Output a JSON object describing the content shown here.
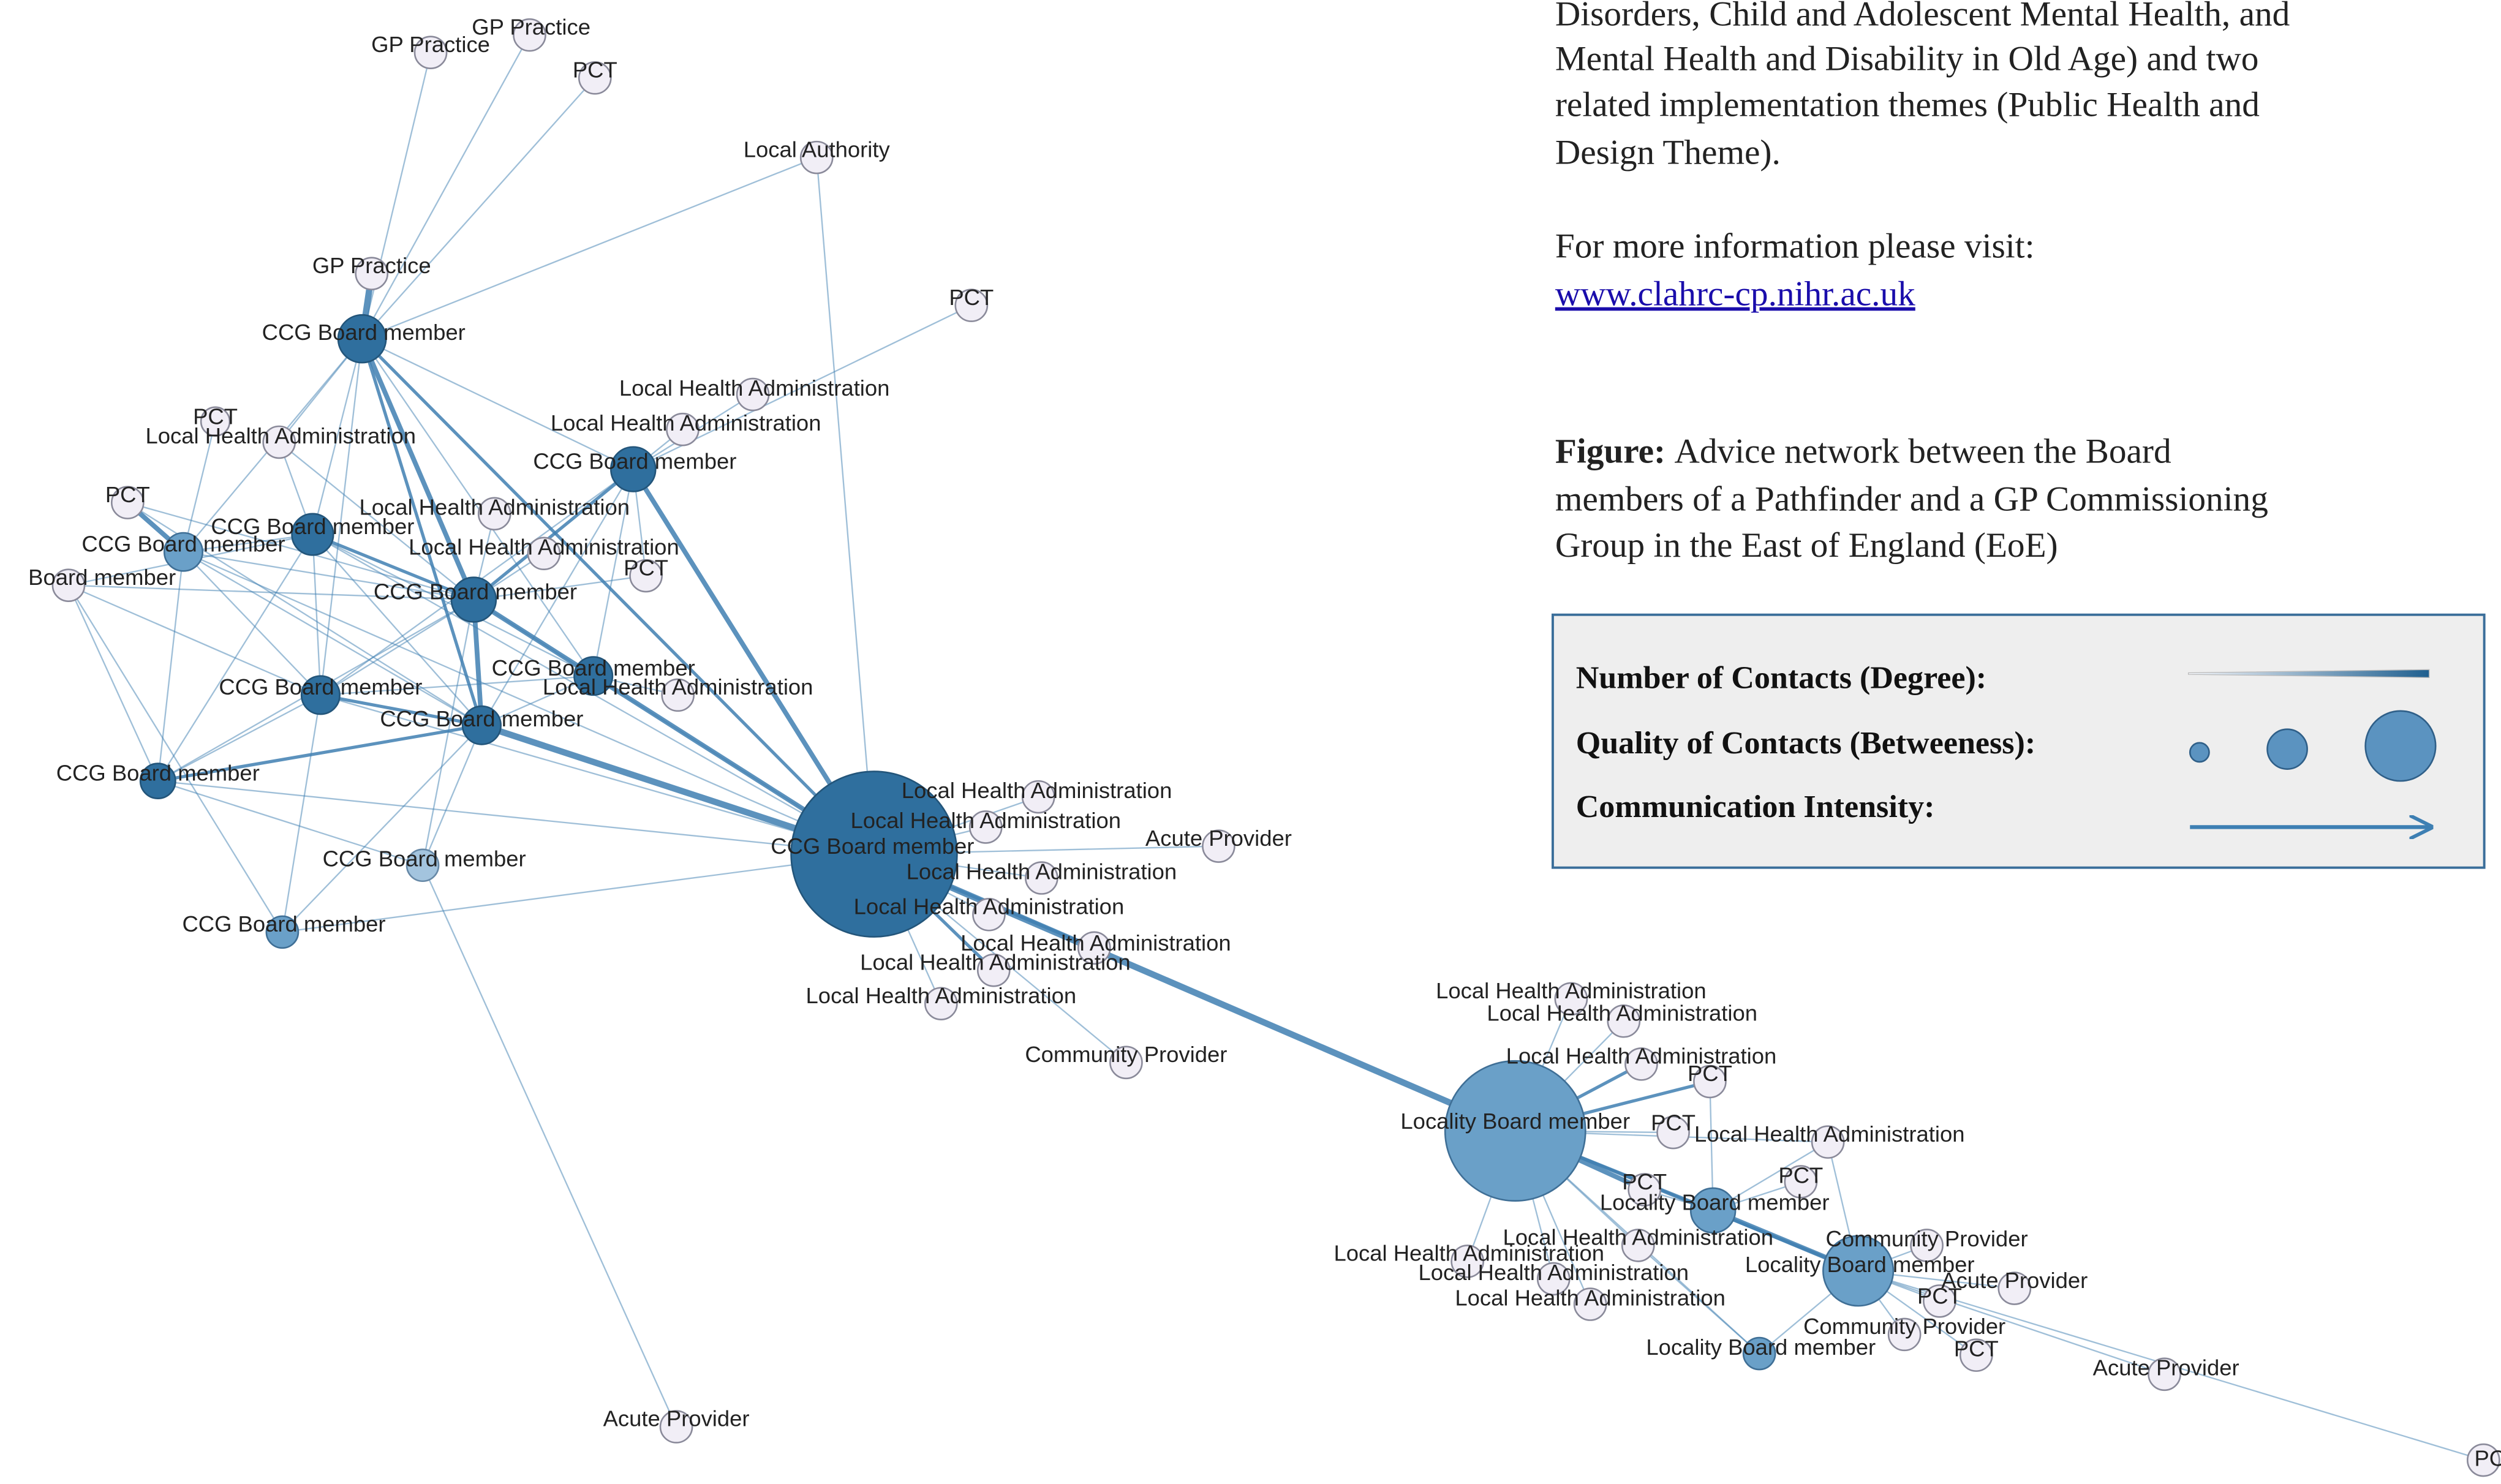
{
  "intro_lines": [
    "Disorders, Child and Adolescent Mental Health, and",
    "Mental Health and Disability in Old Age) and two",
    "related implementation themes (Public Health and",
    "Design Theme)."
  ],
  "info_text": "For more information please visit:",
  "link": "www.clahrc-cp.nihr.ac.uk",
  "figure": {
    "label": "Figure:",
    "lines": [
      "Advice network between the Board",
      "members of a Pathfinder and a GP Commissioning",
      "Group in the East of England (EoE)"
    ]
  },
  "legend": {
    "items": [
      "Number of Contacts (Degree):",
      "Quality of Contacts (Betweeness):",
      "Communication Intensity:"
    ]
  },
  "nodes": [
    {
      "label": "GP Practice"
    },
    {
      "label": "GP Practice"
    },
    {
      "label": "PCT"
    },
    {
      "label": "Local Authority"
    },
    {
      "label": "PCT"
    },
    {
      "label": "GP Practice"
    },
    {
      "label": "CCG Board member"
    },
    {
      "label": "Local Health Administration"
    },
    {
      "label": "Local Health Administration"
    },
    {
      "label": "PCT"
    },
    {
      "label": "Local Health Administration"
    },
    {
      "label": "CCG Board member"
    },
    {
      "label": "PCT"
    },
    {
      "label": "CCG Board member"
    },
    {
      "label": "CCG Board member"
    },
    {
      "label": "Local Health Administration"
    },
    {
      "label": "Local Health Administration"
    },
    {
      "label": "Board member"
    },
    {
      "label": "PCT"
    },
    {
      "label": "CCG Board member"
    },
    {
      "label": "CCG Board member"
    },
    {
      "label": "Local Health Administration"
    },
    {
      "label": "CCG Board member"
    },
    {
      "label": "CCG Board member"
    },
    {
      "label": "CCG Board member"
    },
    {
      "label": "CCG Board member"
    },
    {
      "label": "Local Health Administration"
    },
    {
      "label": "Local Health Administration"
    },
    {
      "label": "Acute Provider"
    },
    {
      "label": "Local Health Administration"
    },
    {
      "label": "Local Health Administration"
    },
    {
      "label": "Local Health Administration"
    },
    {
      "label": "Local Health Administration"
    },
    {
      "label": "Local Health Administration"
    },
    {
      "label": "CCG Board member"
    },
    {
      "label": "CCG Board member"
    },
    {
      "label": "Community Provider"
    },
    {
      "label": "Acute Provider"
    },
    {
      "label": "Locality Board member"
    },
    {
      "label": "Local Health Administration"
    },
    {
      "label": "Local Health Administration"
    },
    {
      "label": "Local Health Administration"
    },
    {
      "label": "PCT"
    },
    {
      "label": "PCT"
    },
    {
      "label": "Local Health Administration"
    },
    {
      "label": "PCT"
    },
    {
      "label": "PCT"
    },
    {
      "label": "Locality Board member"
    },
    {
      "label": "Local Health Administration"
    },
    {
      "label": "Local Health Administration"
    },
    {
      "label": "Local Health Administration"
    },
    {
      "label": "Local Health Administration"
    },
    {
      "label": "Community Provider"
    },
    {
      "label": "Locality Board member"
    },
    {
      "label": "Acute Provider"
    },
    {
      "label": "PCT"
    },
    {
      "label": "Community Provider"
    },
    {
      "label": "Locality Board member"
    },
    {
      "label": "PCT"
    },
    {
      "label": "Acute Provider"
    },
    {
      "label": "PC"
    }
  ]
}
